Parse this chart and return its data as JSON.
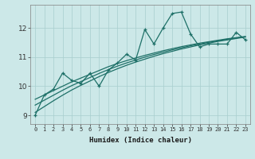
{
  "xlabel": "Humidex (Indice chaleur)",
  "ylabel": "",
  "bg_color": "#cce8e8",
  "line_color": "#1e7068",
  "xlim": [
    -0.5,
    23.5
  ],
  "ylim": [
    8.7,
    12.8
  ],
  "xticks": [
    0,
    1,
    2,
    3,
    4,
    5,
    6,
    7,
    8,
    9,
    10,
    11,
    12,
    13,
    14,
    15,
    16,
    17,
    18,
    19,
    20,
    21,
    22,
    23
  ],
  "yticks": [
    9,
    10,
    11,
    12
  ],
  "x": [
    0,
    1,
    2,
    3,
    4,
    5,
    6,
    7,
    8,
    9,
    10,
    11,
    12,
    13,
    14,
    15,
    16,
    17,
    18,
    19,
    20,
    21,
    22,
    23
  ],
  "y_jagged": [
    9.0,
    9.7,
    9.9,
    10.45,
    10.2,
    10.1,
    10.45,
    10.0,
    10.55,
    10.8,
    11.1,
    10.9,
    11.95,
    11.45,
    12.0,
    12.5,
    12.55,
    11.8,
    11.35,
    11.45,
    11.45,
    11.45,
    11.85,
    11.6
  ],
  "y_smooth1": [
    9.55,
    9.7,
    9.85,
    10.0,
    10.15,
    10.28,
    10.41,
    10.54,
    10.67,
    10.78,
    10.88,
    10.97,
    11.06,
    11.14,
    11.22,
    11.29,
    11.36,
    11.42,
    11.48,
    11.53,
    11.58,
    11.63,
    11.67,
    11.71
  ],
  "y_smooth2": [
    9.35,
    9.52,
    9.69,
    9.86,
    10.02,
    10.16,
    10.3,
    10.44,
    10.57,
    10.69,
    10.8,
    10.9,
    11.0,
    11.09,
    11.17,
    11.25,
    11.32,
    11.39,
    11.45,
    11.51,
    11.56,
    11.61,
    11.66,
    11.7
  ],
  "y_smooth3": [
    9.1,
    9.3,
    9.5,
    9.69,
    9.87,
    10.03,
    10.18,
    10.33,
    10.47,
    10.6,
    10.72,
    10.83,
    10.93,
    11.03,
    11.12,
    11.2,
    11.28,
    11.35,
    11.42,
    11.48,
    11.54,
    11.59,
    11.64,
    11.69
  ]
}
